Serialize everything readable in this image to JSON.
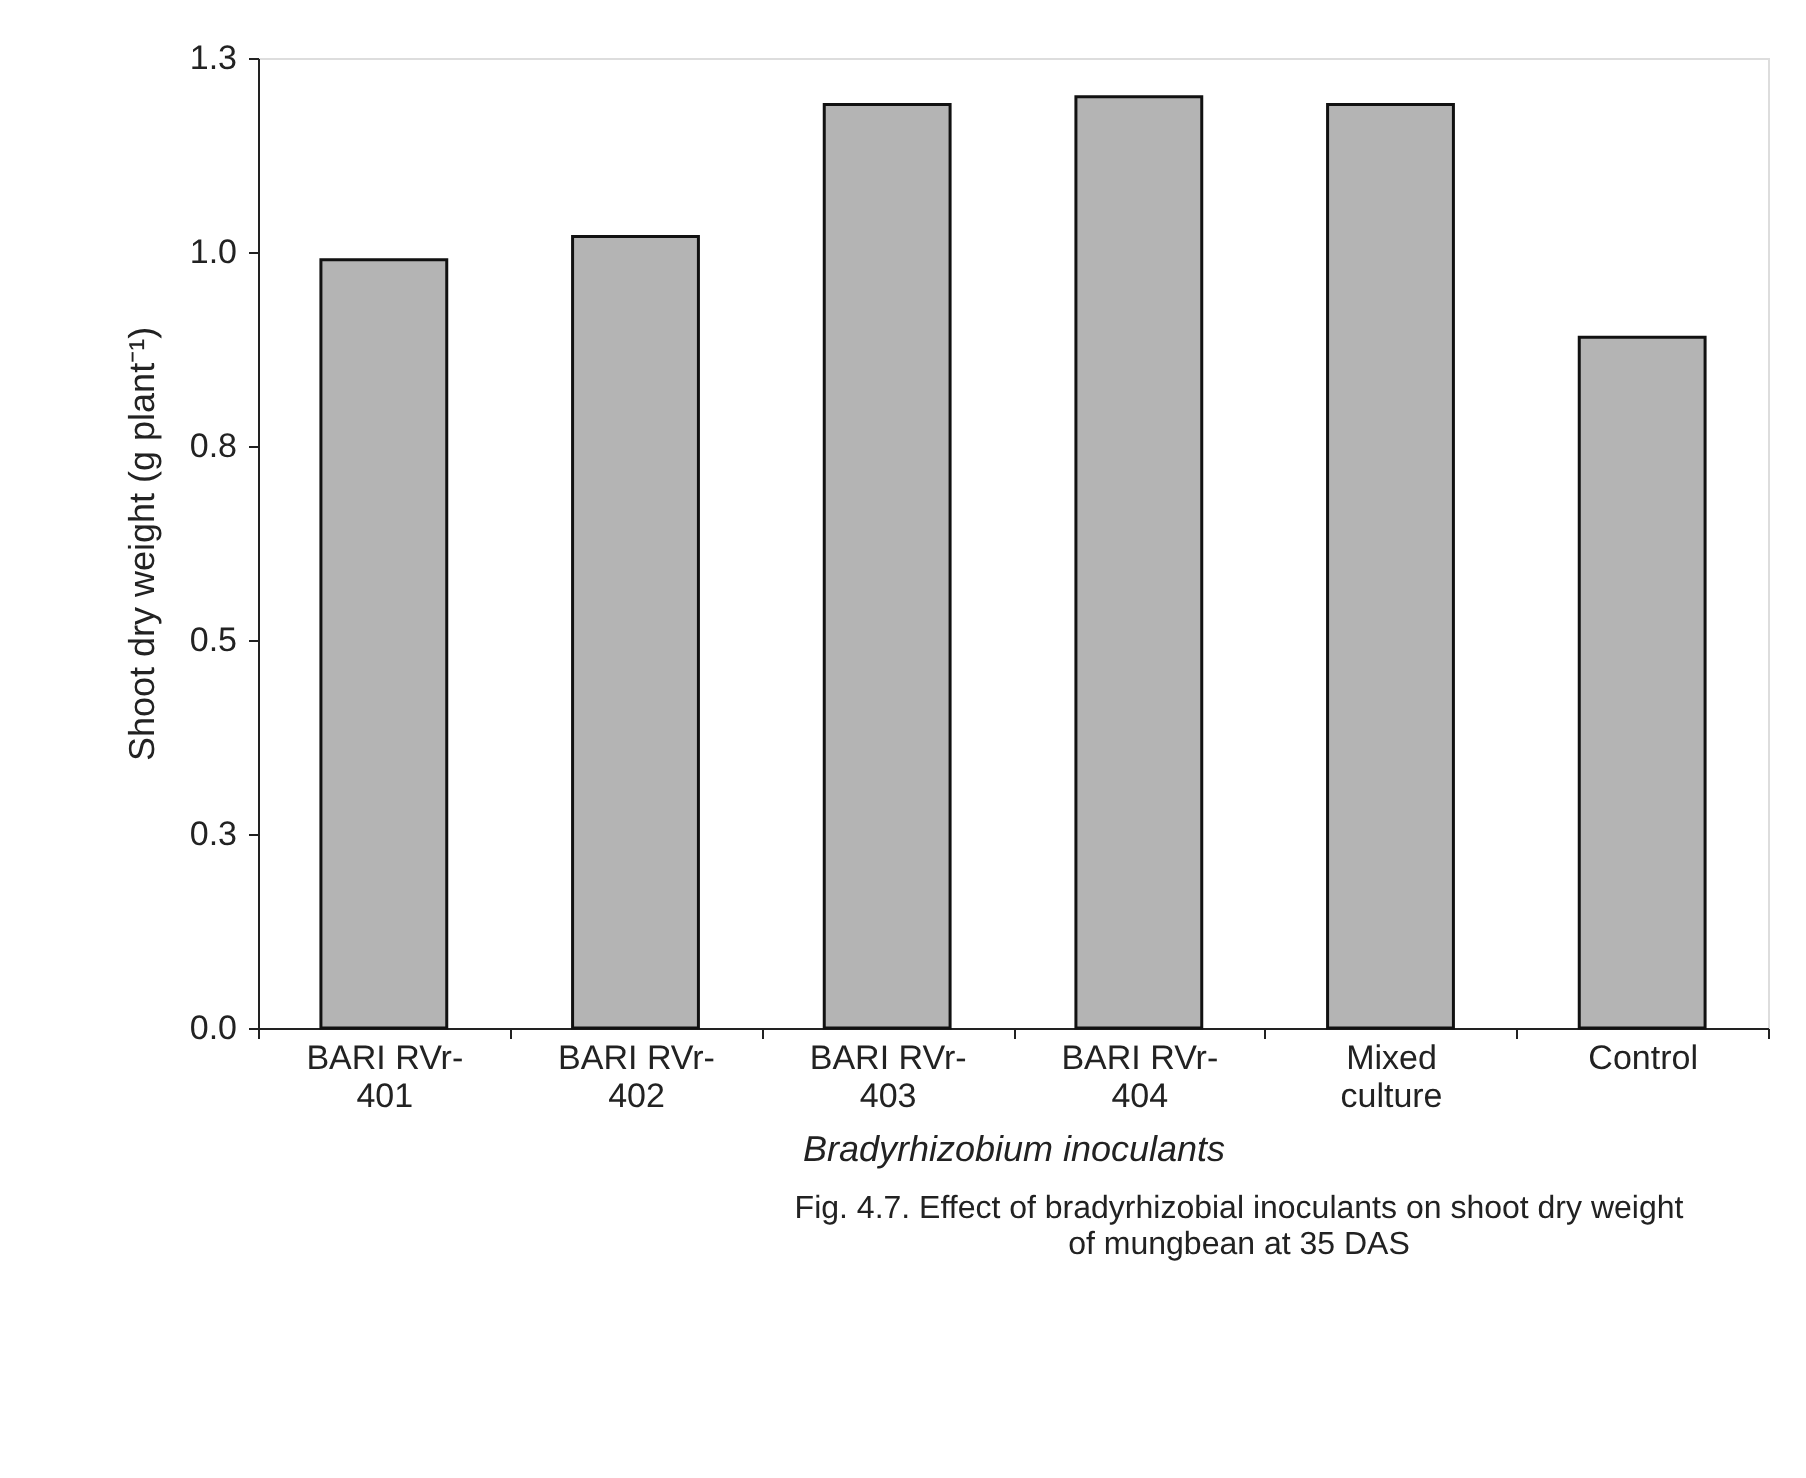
{
  "chart_data": {
    "type": "bar",
    "categories": [
      "BARI RVr-\n401",
      "BARI RVr-\n402",
      "BARI RVr-\n403",
      "BARI RVr-\n404",
      "Mixed\nculture",
      "Control"
    ],
    "values": [
      0.99,
      1.02,
      1.19,
      1.2,
      1.19,
      0.89
    ],
    "color": "#b4b4b4",
    "xlabel": "Bradyrhizobium inoculants",
    "ylabel": "Shoot dry weight (g plant⁻¹)",
    "ylim": [
      0,
      1.25
    ],
    "yticks": [
      {
        "value": 0,
        "label": "0.0"
      },
      {
        "value": 0.25,
        "label": "0.3"
      },
      {
        "value": 0.5,
        "label": "0.5"
      },
      {
        "value": 0.75,
        "label": "0.8"
      },
      {
        "value": 1.0,
        "label": "1.0"
      },
      {
        "value": 1.25,
        "label": "1.3"
      }
    ],
    "grid": false,
    "annotations": [
      "Fig. 4.7. Effect of bradyrhizobial inoculants on shoot dry weight of mungbean at 35 DAS"
    ]
  }
}
